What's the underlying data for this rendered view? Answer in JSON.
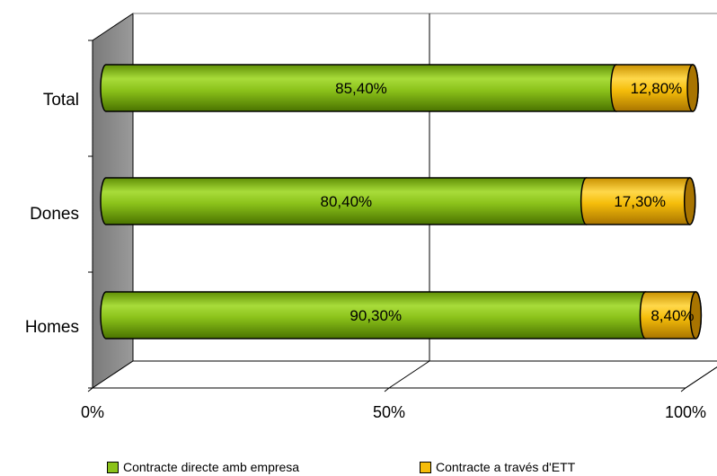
{
  "chart_data": {
    "type": "bar",
    "orientation": "horizontal",
    "stacked": true,
    "style": "3d-cylinder",
    "categories": [
      "Total",
      "Dones",
      "Homes"
    ],
    "series": [
      {
        "name": "Contracte directe amb empresa",
        "values": [
          85.4,
          80.4,
          90.3
        ],
        "labels": [
          "85,40%",
          "80,40%",
          "90,30%"
        ],
        "color": "#8bc21a"
      },
      {
        "name": "Contracte a través d'ETT",
        "values": [
          12.8,
          17.3,
          8.4
        ],
        "labels": [
          "12,80%",
          "17,30%",
          "8,40%"
        ],
        "color": "#f5bd0a"
      }
    ],
    "x_ticks": [
      "0%",
      "50%",
      "100%"
    ],
    "xlim": [
      0,
      100
    ],
    "grid": true,
    "legend": "bottom"
  }
}
